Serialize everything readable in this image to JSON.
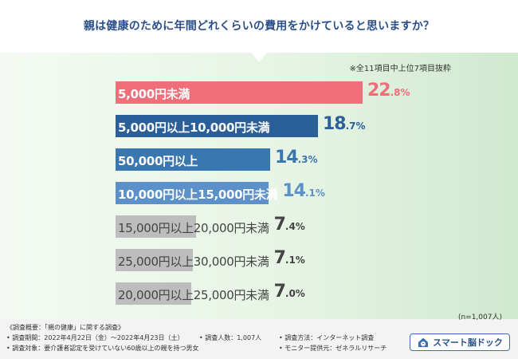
{
  "title": "親は健康のために年間どれくらいの費用をかけていると思いますか？",
  "note": "※全11項目中上位7項目抜粋",
  "sample_size": "(n=1,007人)",
  "percent_sign": "%",
  "colors": {
    "title": "#2a4f8a",
    "first": "#f06e79",
    "dark_blue": "#2b5f99",
    "mid_blue": "#3a76b0",
    "light_blue": "#5b91c8",
    "gray": "#bdbdbd"
  },
  "chart_data": {
    "type": "bar",
    "orientation": "horizontal",
    "categories": [
      "5,000円未満",
      "5,000円以上10,000円未満",
      "50,000円以上",
      "10,000円以上15,000円未満",
      "15,000円以上20,000円未満",
      "25,000円以上30,000円未満",
      "20,000円以上25,000円未満"
    ],
    "values": [
      22.8,
      18.7,
      14.3,
      14.1,
      7.4,
      7.1,
      7.0
    ],
    "value_labels": [
      {
        "int": "22",
        "dec": ".8"
      },
      {
        "int": "18",
        "dec": ".7"
      },
      {
        "int": "14",
        "dec": ".3"
      },
      {
        "int": "14",
        "dec": ".1"
      },
      {
        "int": "7",
        "dec": ".4"
      },
      {
        "int": "7",
        "dec": ".1"
      },
      {
        "int": "7",
        "dec": ".0"
      }
    ],
    "bar_colors": [
      "#f06e79",
      "#2b5f99",
      "#3a76b0",
      "#5b91c8",
      "#bdbdbd",
      "#bdbdbd",
      "#bdbdbd"
    ],
    "value_colors": [
      "#f06e79",
      "#2b5f99",
      "#3a76b0",
      "#5b91c8",
      "#444444",
      "#444444",
      "#444444"
    ],
    "xlim": [
      0,
      22.8
    ]
  },
  "footer": {
    "overview": "《調査概要：「親の健康」に関する調査》",
    "period": "• 調査期間：2022年4月22日（金）〜2022年4月23日（土）",
    "count": "• 調査人数：1,007人",
    "method": "• 調査方法：インターネット調査",
    "target": "• 調査対象：要介護者認定を受けていない60歳以上の親を持つ男女",
    "provider": "• モニター提供元：ゼネラルリサーチ"
  },
  "logo": {
    "text": "スマート脳ドック",
    "icon": "brain-house-icon"
  }
}
